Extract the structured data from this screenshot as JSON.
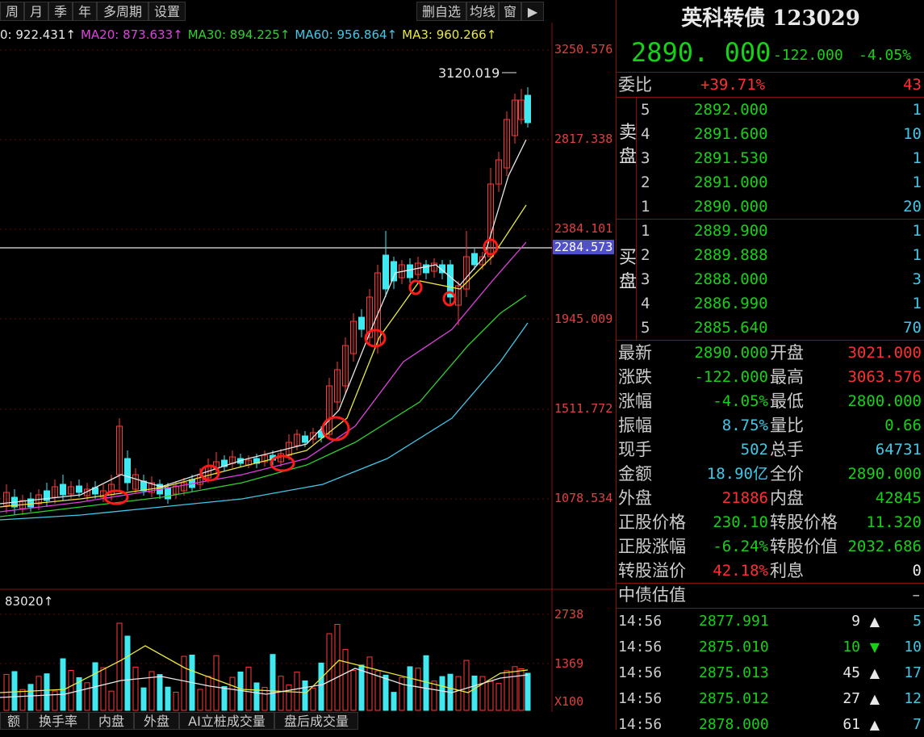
{
  "toolbar": {
    "left_buttons": [
      "周",
      "月",
      "季",
      "年",
      "多周期",
      "设置"
    ],
    "right_buttons": [
      "删自选",
      "均线",
      "窗",
      "▶"
    ]
  },
  "ma_line": [
    {
      "text": "0: 922.431↑",
      "color": "#e8e8e8"
    },
    {
      "text": "MA20: 873.633↑",
      "color": "#e040e0"
    },
    {
      "text": "MA30: 894.225↑",
      "color": "#30d030"
    },
    {
      "text": "MA60: 956.864↑",
      "color": "#40c8e8"
    },
    {
      "text": "MA3: 960.266↑",
      "color": "#e8e840"
    }
  ],
  "price_axis": [
    "3250.576",
    "2817.338",
    "2384.101",
    "2284.573",
    "1945.009",
    "1511.772",
    "1078.534"
  ],
  "high_annotation": "3120.019",
  "volume_label": "83020↑",
  "volume_axis": [
    "2738",
    "1369",
    "X100"
  ],
  "bottom_tabs": [
    "额",
    "换手率",
    "内盘",
    "外盘",
    "AI立桩成交量",
    "盘后成交量"
  ],
  "quote": {
    "name": "英科转债",
    "code": "123029",
    "last": "2890. 000",
    "change": "-122.000",
    "change_pct": "-4.05%",
    "ratio_label": "委比",
    "ratio_value": "+39.71%",
    "ratio_vol": "43"
  },
  "sell_label": "卖盘",
  "buy_label": "买盘",
  "sell": [
    {
      "level": "5",
      "price": "2892.000",
      "vol": "1"
    },
    {
      "level": "4",
      "price": "2891.600",
      "vol": "10"
    },
    {
      "level": "3",
      "price": "2891.530",
      "vol": "1"
    },
    {
      "level": "2",
      "price": "2891.000",
      "vol": "1"
    },
    {
      "level": "1",
      "price": "2890.000",
      "vol": "20"
    }
  ],
  "buy": [
    {
      "level": "1",
      "price": "2889.900",
      "vol": "1"
    },
    {
      "level": "2",
      "price": "2889.888",
      "vol": "1"
    },
    {
      "level": "3",
      "price": "2888.000",
      "vol": "3"
    },
    {
      "level": "4",
      "price": "2886.990",
      "vol": "1"
    },
    {
      "level": "5",
      "price": "2885.640",
      "vol": "70"
    }
  ],
  "stats": [
    {
      "l1": "最新",
      "v1": "2890.000",
      "c1": "green",
      "l2": "开盘",
      "v2": "3021.000",
      "c2": "red"
    },
    {
      "l1": "涨跌",
      "v1": "-122.000",
      "c1": "green",
      "l2": "最高",
      "v2": "3063.576",
      "c2": "red"
    },
    {
      "l1": "涨幅",
      "v1": "-4.05%",
      "c1": "green",
      "l2": "最低",
      "v2": "2800.000",
      "c2": "green"
    },
    {
      "l1": "振幅",
      "v1": "8.75%",
      "c1": "cyan",
      "l2": "量比",
      "v2": "0.66",
      "c2": "green"
    },
    {
      "l1": "现手",
      "v1": "502",
      "c1": "cyan",
      "l2": "总手",
      "v2": "64731",
      "c2": "cyan"
    },
    {
      "l1": "金额",
      "v1": "18.90亿",
      "c1": "cyan",
      "l2": "全价",
      "v2": "2890.000",
      "c2": "green"
    },
    {
      "l1": "外盘",
      "v1": "21886",
      "c1": "red",
      "l2": "内盘",
      "v2": "42845",
      "c2": "green"
    }
  ],
  "bond_stats": [
    {
      "l1": "正股价格",
      "v1": "230.10",
      "c1": "green",
      "l2": "转股价格",
      "v2": "11.320",
      "c2": "green"
    },
    {
      "l1": "正股涨幅",
      "v1": "-6.24%",
      "c1": "green",
      "l2": "转股价值",
      "v2": "2032.686",
      "c2": "green"
    },
    {
      "l1": "转股溢价",
      "v1": "42.18%",
      "c1": "red",
      "l2": "利息",
      "v2": "0",
      "c2": "white"
    }
  ],
  "valuation": {
    "label": "中债估值",
    "value": "–"
  },
  "ticks": [
    {
      "time": "14:56",
      "price": "2877.991",
      "vol": "9",
      "dir": "up",
      "n": "5"
    },
    {
      "time": "14:56",
      "price": "2875.010",
      "vol": "10",
      "dir": "down",
      "n": "10"
    },
    {
      "time": "14:56",
      "price": "2875.013",
      "vol": "45",
      "dir": "up",
      "n": "17"
    },
    {
      "time": "14:56",
      "price": "2875.012",
      "vol": "27",
      "dir": "up",
      "n": "12"
    },
    {
      "time": "14:56",
      "price": "2878.000",
      "vol": "61",
      "dir": "up",
      "n": "7"
    }
  ]
}
